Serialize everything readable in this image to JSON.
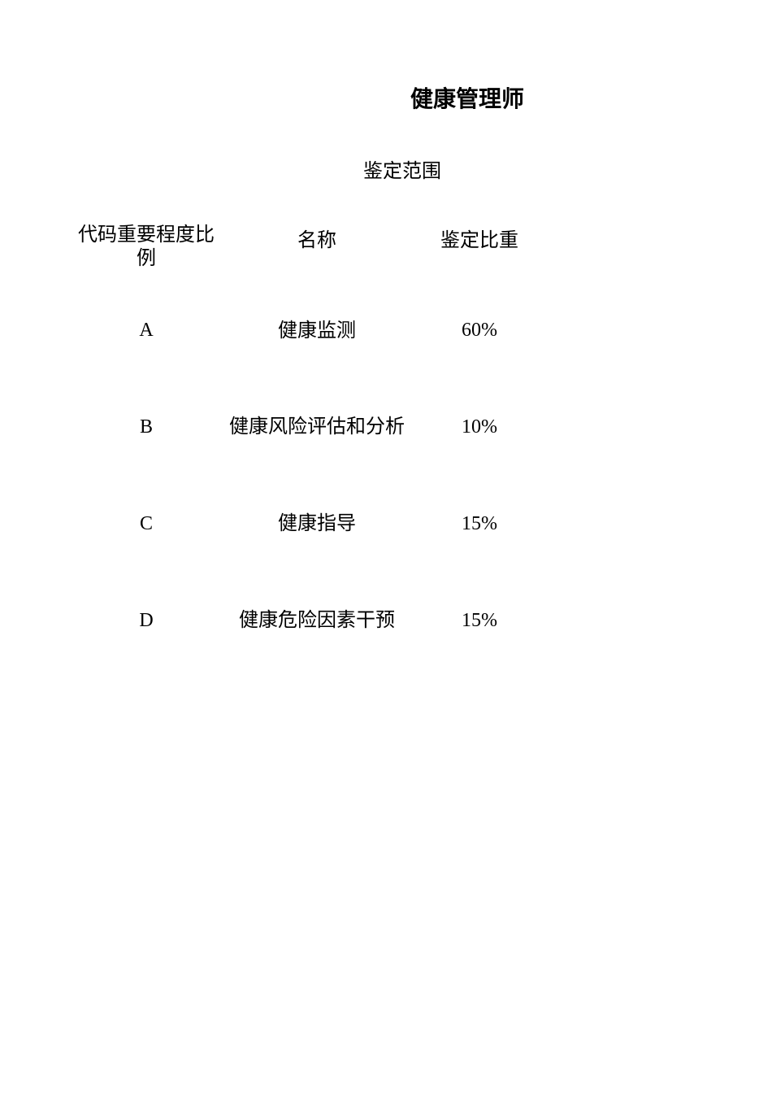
{
  "title": "健康管理师",
  "subtitle": "鉴定范围",
  "headers": {
    "col1": "代码重要程度比例",
    "col2": "名称",
    "col3": "鉴定比重"
  },
  "rows": [
    {
      "code": "A",
      "name": "健康监测",
      "weight": "60%"
    },
    {
      "code": "B",
      "name": "健康风险评估和分析",
      "weight": "10%"
    },
    {
      "code": "C",
      "name": "健康指导",
      "weight": "15%"
    },
    {
      "code": "D",
      "name": "健康危险因素干预",
      "weight": "15%"
    }
  ],
  "colors": {
    "background": "#ffffff",
    "text": "#000000"
  },
  "typography": {
    "title_fontsize": 28,
    "subtitle_fontsize": 24,
    "body_fontsize": 24,
    "title_fontfamily": "SimHei",
    "body_fontfamily": "SimSun"
  }
}
